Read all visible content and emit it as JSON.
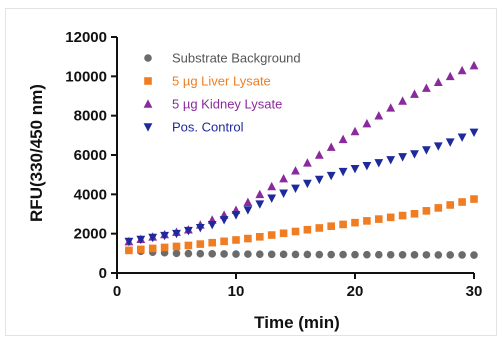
{
  "chart_data": {
    "type": "scatter",
    "title": "",
    "xlabel": "Time (min)",
    "ylabel": "RFU(330/450 nm)",
    "xlim": [
      0,
      30
    ],
    "ylim": [
      0,
      12000
    ],
    "x_ticks": [
      0,
      10,
      20,
      30
    ],
    "y_ticks": [
      0,
      2000,
      4000,
      6000,
      8000,
      10000,
      12000
    ],
    "x_tick_labels": [
      "0",
      "10",
      "20",
      "30"
    ],
    "y_tick_labels": [
      "0",
      "2000",
      "4000",
      "6000",
      "8000",
      "10000",
      "12000"
    ],
    "grid": false,
    "legend_position": "top-left",
    "x": [
      1,
      2,
      3,
      4,
      5,
      6,
      7,
      8,
      9,
      10,
      11,
      12,
      13,
      14,
      15,
      16,
      17,
      18,
      19,
      20,
      21,
      22,
      23,
      24,
      25,
      26,
      27,
      28,
      29,
      30
    ],
    "series": [
      {
        "name": "Substrate Background",
        "marker": "circle",
        "color": "#6b6b6b",
        "values": [
          1150,
          1100,
          1060,
          1030,
          1000,
          990,
          980,
          975,
          970,
          965,
          960,
          955,
          950,
          948,
          945,
          942,
          940,
          938,
          936,
          934,
          932,
          930,
          928,
          926,
          924,
          922,
          920,
          918,
          916,
          914
        ]
      },
      {
        "name": "5 µg Liver Lysate",
        "marker": "square",
        "color": "#f07d22",
        "values": [
          1150,
          1200,
          1250,
          1300,
          1350,
          1400,
          1470,
          1540,
          1610,
          1680,
          1750,
          1840,
          1930,
          2020,
          2110,
          2200,
          2290,
          2380,
          2470,
          2560,
          2650,
          2740,
          2830,
          2920,
          3010,
          3160,
          3310,
          3460,
          3610,
          3760
        ]
      },
      {
        "name": "5 µg Kidney Lysate",
        "marker": "triangle-up",
        "color": "#8a2a9c",
        "values": [
          1600,
          1720,
          1840,
          1960,
          2080,
          2200,
          2450,
          2700,
          2950,
          3200,
          3600,
          4000,
          4400,
          4800,
          5200,
          5600,
          6000,
          6400,
          6800,
          7200,
          7600,
          8000,
          8400,
          8750,
          9100,
          9400,
          9700,
          10000,
          10300,
          10550
        ]
      },
      {
        "name": "Pos. Control",
        "marker": "triangle-down",
        "color": "#1d2a9c",
        "values": [
          1600,
          1700,
          1800,
          1900,
          2000,
          2150,
          2300,
          2450,
          2700,
          2950,
          3200,
          3500,
          3800,
          4050,
          4300,
          4550,
          4750,
          4950,
          5150,
          5300,
          5450,
          5600,
          5750,
          5900,
          6050,
          6250,
          6450,
          6650,
          6900,
          7150
        ]
      }
    ]
  }
}
